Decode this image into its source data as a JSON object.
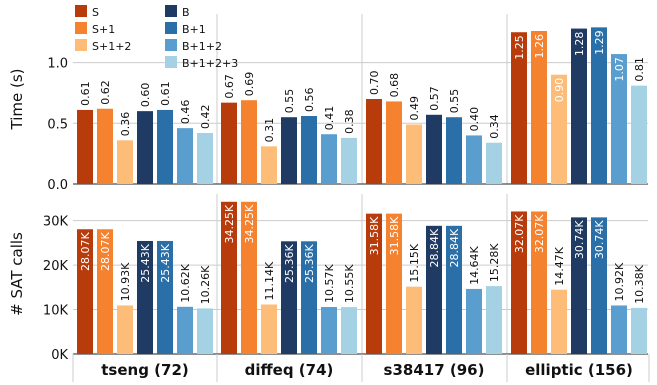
{
  "chart_data": [
    {
      "type": "bar",
      "ylabel": "Time (s)",
      "ylim": [
        0,
        1.4
      ],
      "yticks": [
        0.0,
        0.5,
        1.0
      ],
      "ytick_labels": [
        "0.0",
        "0.5",
        "1.0"
      ],
      "grid": true,
      "categories": [
        "tseng (72)",
        "diffeq (74)",
        "s38417 (96)",
        "elliptic (156)"
      ],
      "series": [
        {
          "name": "S",
          "values": [
            0.61,
            0.67,
            0.7,
            1.25
          ],
          "labels": [
            "0.61",
            "0.67",
            "0.70",
            "1.25"
          ]
        },
        {
          "name": "S+1",
          "values": [
            0.62,
            0.69,
            0.68,
            1.26
          ],
          "labels": [
            "0.62",
            "0.69",
            "0.68",
            "1.26"
          ]
        },
        {
          "name": "S+1+2",
          "values": [
            0.36,
            0.31,
            0.49,
            0.9
          ],
          "labels": [
            "0.36",
            "0.31",
            "0.49",
            "0.90"
          ]
        },
        {
          "name": "B",
          "values": [
            0.6,
            0.55,
            0.57,
            1.28
          ],
          "labels": [
            "0.60",
            "0.55",
            "0.57",
            "1.28"
          ]
        },
        {
          "name": "B+1",
          "values": [
            0.61,
            0.56,
            0.55,
            1.29
          ],
          "labels": [
            "0.61",
            "0.56",
            "0.55",
            "1.29"
          ]
        },
        {
          "name": "B+1+2",
          "values": [
            0.46,
            0.41,
            0.4,
            1.07
          ],
          "labels": [
            "0.46",
            "0.41",
            "0.40",
            "1.07"
          ]
        },
        {
          "name": "B+1+2+3",
          "values": [
            0.42,
            0.38,
            0.34,
            0.81
          ],
          "labels": [
            "0.42",
            "0.38",
            "0.34",
            "0.81"
          ]
        }
      ]
    },
    {
      "type": "bar",
      "ylabel": "# SAT calls",
      "ylim": [
        0,
        36000
      ],
      "yticks": [
        0,
        10000,
        20000,
        30000
      ],
      "ytick_labels": [
        "0K",
        "10K",
        "20K",
        "30K"
      ],
      "grid": true,
      "categories": [
        "tseng (72)",
        "diffeq (74)",
        "s38417 (96)",
        "elliptic (156)"
      ],
      "series": [
        {
          "name": "S",
          "values": [
            28070,
            34250,
            31580,
            32070
          ],
          "labels": [
            "28.07K",
            "34.25K",
            "31.58K",
            "32.07K"
          ]
        },
        {
          "name": "S+1",
          "values": [
            28070,
            34250,
            31580,
            32070
          ],
          "labels": [
            "28.07K",
            "34.25K",
            "31.58K",
            "32.07K"
          ]
        },
        {
          "name": "S+1+2",
          "values": [
            10930,
            11140,
            15150,
            14470
          ],
          "labels": [
            "10.93K",
            "11.14K",
            "15.15K",
            "14.47K"
          ]
        },
        {
          "name": "B",
          "values": [
            25430,
            25360,
            28840,
            30740
          ],
          "labels": [
            "25.43K",
            "25.36K",
            "28.84K",
            "30.74K"
          ]
        },
        {
          "name": "B+1",
          "values": [
            25430,
            25360,
            28840,
            30740
          ],
          "labels": [
            "25.43K",
            "25.36K",
            "28.84K",
            "30.74K"
          ]
        },
        {
          "name": "B+1+2",
          "values": [
            10620,
            10570,
            14640,
            10920
          ],
          "labels": [
            "10.62K",
            "10.57K",
            "14.64K",
            "10.92K"
          ]
        },
        {
          "name": "B+1+2+3",
          "values": [
            10260,
            10550,
            15280,
            10380
          ],
          "labels": [
            "10.26K",
            "10.55K",
            "15.28K",
            "10.38K"
          ]
        }
      ]
    }
  ],
  "legend": {
    "placement": "top-left",
    "entries": [
      "S",
      "S+1",
      "S+1+2",
      "B",
      "B+1",
      "B+1+2",
      "B+1+2+3"
    ]
  },
  "colors": [
    "#b83c0b",
    "#f5822e",
    "#fdbd79",
    "#1f3b63",
    "#2b6fa8",
    "#5a9ecf",
    "#a4d1e3"
  ],
  "label_inside_color": "#ffffff",
  "label_outside_color": "#111111",
  "grid_color": "#cccccc"
}
